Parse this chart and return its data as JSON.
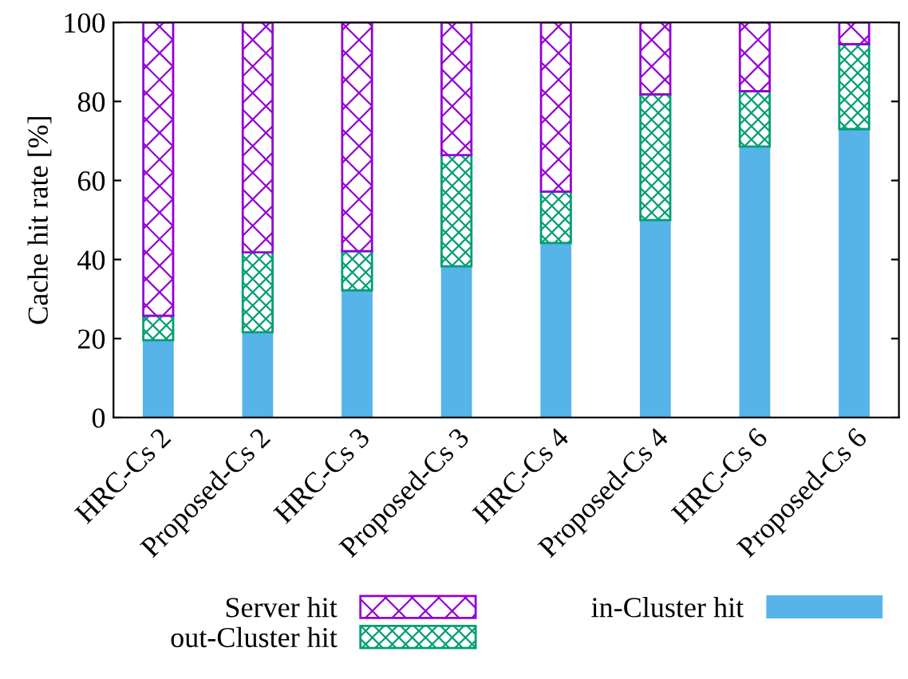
{
  "chart_data": {
    "type": "bar",
    "stacked": true,
    "ylabel": "Cache hit rate [%]",
    "categories": [
      "HRC-Cs 2",
      "Proposed-Cs 2",
      "HRC-Cs 3",
      "Proposed-Cs 3",
      "HRC-Cs 4",
      "Proposed-Cs 4",
      "HRC-Cs 6",
      "Proposed-Cs 6"
    ],
    "series": [
      {
        "name": "in-Cluster hit",
        "color": "#56b4e9",
        "values": [
          19.6,
          21.6,
          32.2,
          38.3,
          44.2,
          50.0,
          68.6,
          73.0
        ]
      },
      {
        "name": "out-Cluster hit",
        "color": "#009e73",
        "values": [
          6.2,
          20.2,
          9.9,
          28.1,
          13.0,
          31.8,
          14.0,
          21.5
        ]
      },
      {
        "name": "Server hit",
        "color": "#9400d3",
        "values": [
          74.2,
          58.2,
          57.9,
          33.6,
          42.8,
          18.2,
          17.4,
          5.5
        ]
      }
    ],
    "ylim": [
      0,
      100
    ],
    "yticks": [
      0,
      20,
      40,
      60,
      80,
      100
    ],
    "grid": false,
    "legend": "bottom"
  }
}
